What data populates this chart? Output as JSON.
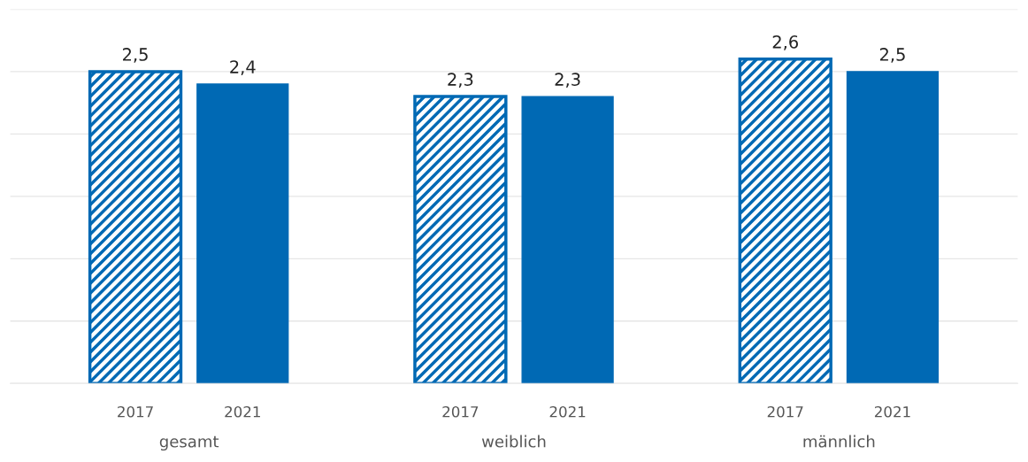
{
  "chart_data": {
    "type": "bar",
    "categories": [
      "gesamt",
      "weiblich",
      "männlich"
    ],
    "series": [
      {
        "name": "2017",
        "color": "#0069b4",
        "values": [
          2.5,
          2.3,
          2.6
        ],
        "value_labels": [
          "2,5",
          "2,3",
          "2,6"
        ]
      },
      {
        "name": "2021",
        "color": "#0069b4",
        "values": [
          2.4,
          2.3,
          2.5
        ],
        "value_labels": [
          "2,4",
          "2,3",
          "2,5"
        ]
      }
    ],
    "ylim": [
      0,
      3
    ],
    "yticks": [
      {
        "value": 0,
        "label": null
      },
      {
        "value": 0.5,
        "label": null
      },
      {
        "value": 1,
        "label": null
      },
      {
        "value": 1.5,
        "label": null
      },
      {
        "value": 2,
        "label": null
      },
      {
        "value": 2.5,
        "label": null
      },
      {
        "value": 3,
        "label": null
      }
    ],
    "grid": "y",
    "legend": false,
    "tick_labels": "x"
  }
}
